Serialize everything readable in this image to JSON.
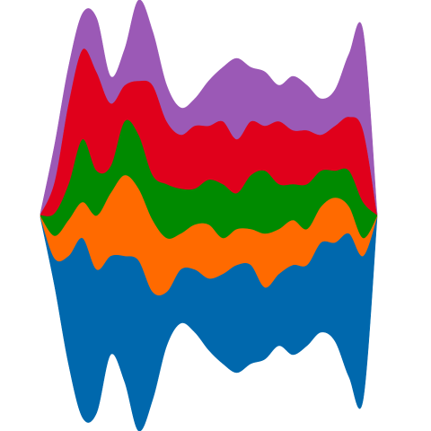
{
  "chart_data": {
    "type": "streamgraph",
    "offset": "silhouette",
    "smooth": true,
    "x": [
      0,
      1,
      2,
      3,
      4,
      5,
      6,
      7,
      8,
      9,
      10,
      11,
      12,
      13,
      14,
      15,
      16,
      17,
      18,
      19,
      20,
      21,
      22,
      23,
      24
    ],
    "xlim": [
      -2.88,
      27.84
    ],
    "ylim": [
      -240,
      240
    ],
    "series": [
      {
        "color": "#0068ad",
        "values": [
          1,
          30,
          120,
          200,
          160,
          110,
          140,
          190,
          120,
          60,
          60,
          70,
          80,
          100,
          120,
          110,
          80,
          80,
          100,
          90,
          100,
          110,
          160,
          160,
          1
        ]
      },
      {
        "color": "#ff6a00",
        "values": [
          1,
          25,
          40,
          40,
          60,
          70,
          90,
          80,
          80,
          60,
          40,
          50,
          60,
          40,
          40,
          40,
          60,
          50,
          50,
          40,
          40,
          50,
          30,
          20,
          1
        ]
      },
      {
        "color": "#008a00",
        "values": [
          1,
          25,
          40,
          70,
          50,
          30,
          60,
          60,
          50,
          60,
          50,
          40,
          50,
          60,
          40,
          60,
          70,
          50,
          40,
          50,
          40,
          30,
          40,
          40,
          1
        ]
      },
      {
        "color": "#e0001b",
        "values": [
          1,
          35,
          90,
          100,
          110,
          70,
          40,
          60,
          100,
          70,
          60,
          70,
          60,
          70,
          60,
          60,
          50,
          70,
          60,
          60,
          40,
          50,
          60,
          80,
          1
        ]
      },
      {
        "color": "#9b59b6",
        "values": [
          1,
          40,
          40,
          40,
          60,
          30,
          40,
          90,
          60,
          40,
          30,
          30,
          50,
          60,
          90,
          60,
          60,
          40,
          60,
          50,
          40,
          40,
          70,
          110,
          1
        ]
      }
    ]
  }
}
